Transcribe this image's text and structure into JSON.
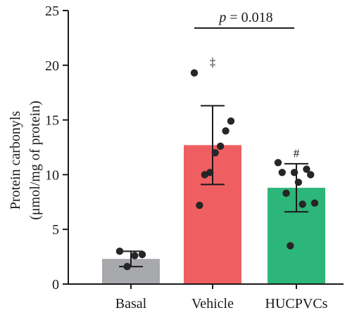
{
  "chart_data": {
    "type": "bar",
    "categories": [
      "Basal",
      "Vehicle",
      "HUCPVCs"
    ],
    "values": [
      2.3,
      12.7,
      8.8
    ],
    "error": [
      0.7,
      3.6,
      2.2
    ],
    "points": [
      [
        3.0,
        2.7,
        2.6,
        1.6
      ],
      [
        19.3,
        14.9,
        14.0,
        12.6,
        12.0,
        10.2,
        10.0,
        7.2
      ],
      [
        11.1,
        10.5,
        10.2,
        10.2,
        10.0,
        9.3,
        8.3,
        7.4,
        7.3,
        3.5
      ]
    ],
    "colors": [
      "#a7a9ad",
      "#ef5f62",
      "#2db679"
    ],
    "ylabel_line1": "Protein carbonyls",
    "ylabel_line2": "(μmol/mg of protein)",
    "ylim": [
      0,
      25
    ],
    "yticks": [
      "0",
      "5",
      "10",
      "15",
      "20",
      "25"
    ],
    "annotations": [
      {
        "category": "Vehicle",
        "text": "‡",
        "y": 20.3
      },
      {
        "category": "HUCPVCs",
        "text": "#",
        "y": 12.0
      }
    ],
    "comparison": {
      "from": "Vehicle",
      "to": "HUCPVCs",
      "y": 23.4,
      "p_symbol": "p",
      "p_value": " = 0.018"
    },
    "grid": false,
    "legend": "none"
  }
}
